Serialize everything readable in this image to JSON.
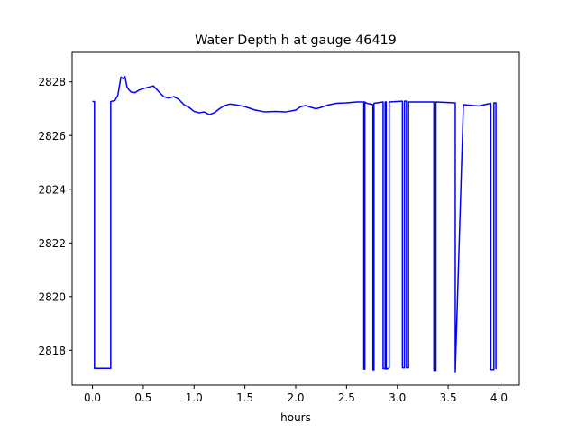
{
  "chart_data": {
    "type": "line",
    "title": "Water Depth h at gauge 46419",
    "xlabel": "hours",
    "ylabel": "",
    "xlim": [
      -0.2,
      4.2
    ],
    "ylim": [
      2816.7,
      2829.1
    ],
    "xticks": [
      0.0,
      0.5,
      1.0,
      1.5,
      2.0,
      2.5,
      3.0,
      3.5,
      4.0
    ],
    "xtick_labels": [
      "0.0",
      "0.5",
      "1.0",
      "1.5",
      "2.0",
      "2.5",
      "3.0",
      "3.5",
      "4.0"
    ],
    "yticks": [
      2818,
      2820,
      2822,
      2824,
      2826,
      2828
    ],
    "ytick_labels": [
      "2818",
      "2820",
      "2822",
      "2824",
      "2826",
      "2828"
    ],
    "grid": false,
    "color": "#0000ff",
    "series": [
      {
        "name": "",
        "x": [
          0.0,
          0.02,
          0.02,
          0.18,
          0.18,
          0.22,
          0.25,
          0.28,
          0.3,
          0.32,
          0.34,
          0.36,
          0.38,
          0.42,
          0.46,
          0.5,
          0.55,
          0.6,
          0.65,
          0.7,
          0.75,
          0.8,
          0.85,
          0.9,
          0.95,
          1.0,
          1.05,
          1.1,
          1.15,
          1.2,
          1.25,
          1.3,
          1.35,
          1.4,
          1.5,
          1.6,
          1.7,
          1.8,
          1.9,
          2.0,
          2.05,
          2.1,
          2.15,
          2.2,
          2.25,
          2.3,
          2.4,
          2.5,
          2.6,
          2.67,
          2.67,
          2.68,
          2.68,
          2.7,
          2.76,
          2.76,
          2.77,
          2.77,
          2.86,
          2.86,
          2.88,
          2.88,
          2.89,
          2.89,
          2.92,
          2.92,
          3.05,
          3.05,
          3.07,
          3.07,
          3.09,
          3.09,
          3.11,
          3.11,
          3.36,
          3.36,
          3.38,
          3.38,
          3.57,
          3.57,
          3.65,
          3.8,
          3.92,
          3.92,
          3.95,
          3.95,
          3.97,
          3.97
        ],
        "y": [
          2827.27,
          2827.27,
          2817.33,
          2817.33,
          2827.27,
          2827.3,
          2827.5,
          2828.18,
          2828.12,
          2828.2,
          2827.8,
          2827.7,
          2827.62,
          2827.6,
          2827.7,
          2827.75,
          2827.8,
          2827.85,
          2827.65,
          2827.45,
          2827.4,
          2827.45,
          2827.35,
          2827.15,
          2827.05,
          2826.9,
          2826.85,
          2826.88,
          2826.78,
          2826.85,
          2827.0,
          2827.12,
          2827.17,
          2827.15,
          2827.08,
          2826.95,
          2826.88,
          2826.9,
          2826.88,
          2826.95,
          2827.08,
          2827.12,
          2827.05,
          2827.0,
          2827.05,
          2827.12,
          2827.2,
          2827.22,
          2827.25,
          2827.25,
          2817.3,
          2817.3,
          2827.25,
          2827.2,
          2827.15,
          2817.27,
          2817.27,
          2827.2,
          2827.25,
          2817.32,
          2817.32,
          2827.25,
          2827.25,
          2817.3,
          2817.35,
          2827.25,
          2827.28,
          2817.35,
          2817.35,
          2827.28,
          2827.28,
          2817.35,
          2817.35,
          2827.25,
          2827.25,
          2817.25,
          2817.25,
          2827.25,
          2827.22,
          2817.2,
          2827.15,
          2827.1,
          2827.2,
          2817.28,
          2817.28,
          2827.22,
          2827.22,
          2817.3
        ]
      }
    ]
  }
}
